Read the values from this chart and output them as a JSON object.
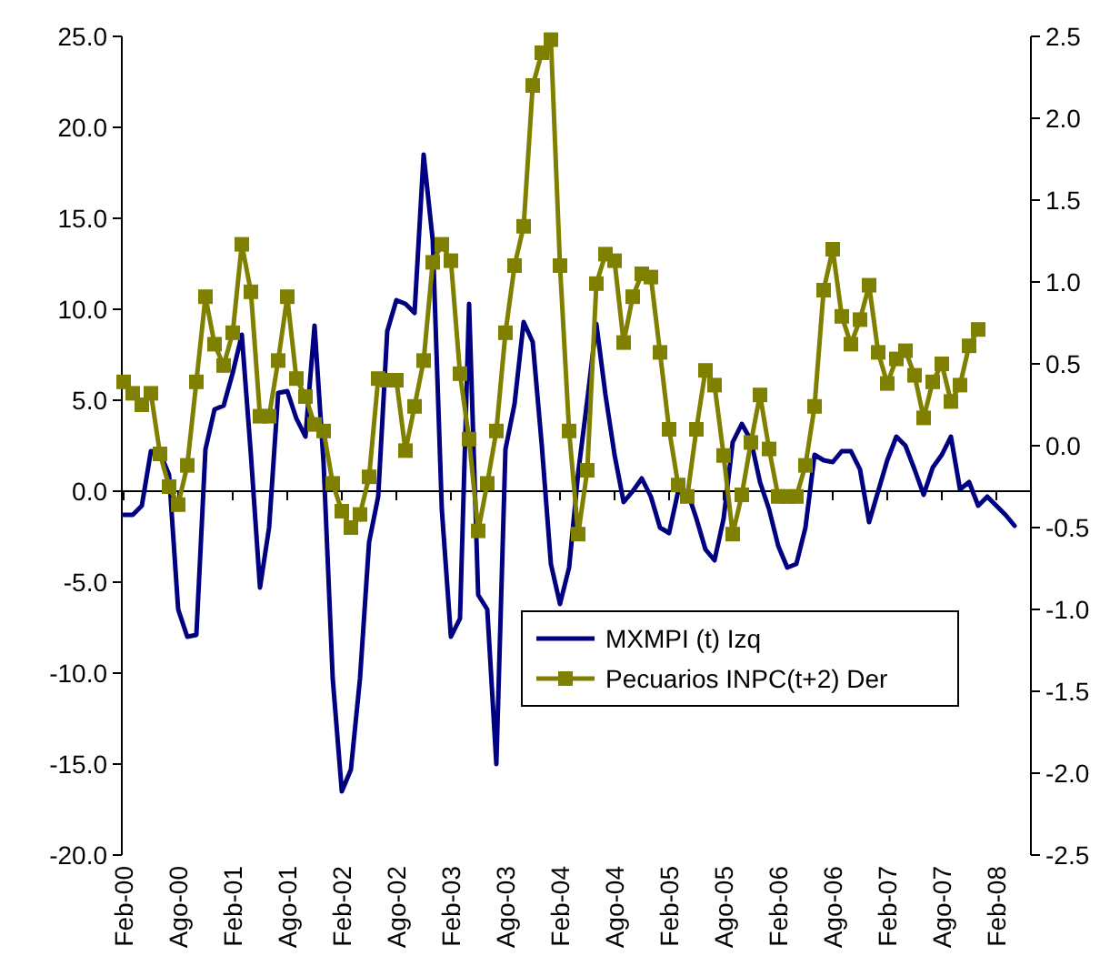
{
  "chart_data": {
    "type": "line",
    "categories": [
      "Feb-00",
      null,
      null,
      null,
      null,
      null,
      "Ago-00",
      null,
      null,
      null,
      null,
      null,
      "Feb-01",
      null,
      null,
      null,
      null,
      null,
      "Ago-01",
      null,
      null,
      null,
      null,
      null,
      "Feb-02",
      null,
      null,
      null,
      null,
      null,
      "Ago-02",
      null,
      null,
      null,
      null,
      null,
      "Feb-03",
      null,
      null,
      null,
      null,
      null,
      "Ago-03",
      null,
      null,
      null,
      null,
      null,
      "Feb-04",
      null,
      null,
      null,
      null,
      null,
      "Ago-04",
      null,
      null,
      null,
      null,
      null,
      "Feb-05",
      null,
      null,
      null,
      null,
      null,
      "Ago-05",
      null,
      null,
      null,
      null,
      null,
      "Feb-06",
      null,
      null,
      null,
      null,
      null,
      "Ago-06",
      null,
      null,
      null,
      null,
      null,
      "Feb-07",
      null,
      null,
      null,
      null,
      null,
      "Ago-07",
      null,
      null,
      null,
      null,
      null,
      "Feb-08",
      null,
      null
    ],
    "series": [
      {
        "name": "MXMPI (t) Izq",
        "color": "#000080",
        "marker": "none",
        "values": [
          -1.3,
          -1.3,
          -0.8,
          2.2,
          2.1,
          0.9,
          -6.5,
          -8.0,
          -7.9,
          2.3,
          4.5,
          4.7,
          6.5,
          8.6,
          2.0,
          -5.3,
          -2.0,
          5.4,
          5.5,
          4.0,
          3.0,
          9.1,
          1.5,
          -10.3,
          -16.5,
          -15.3,
          -10.3,
          -2.8,
          -0.3,
          8.8,
          10.5,
          10.3,
          9.8,
          18.5,
          13.8,
          -1.0,
          -8.0,
          -7.0,
          10.3,
          -5.7,
          -6.5,
          -15.0,
          2.3,
          4.8,
          9.3,
          8.2,
          2.5,
          -4.0,
          -6.2,
          -4.2,
          1.0,
          5.0,
          9.2,
          5.3,
          2.0,
          -0.6,
          0.0,
          0.7,
          -0.3,
          -2.0,
          -2.3,
          0.0,
          0.0,
          -1.5,
          -3.2,
          -3.8,
          -1.5,
          2.7,
          3.7,
          2.8,
          0.5,
          -1.0,
          -3.0,
          -4.2,
          -4.0,
          -2.0,
          2.0,
          1.7,
          1.6,
          2.2,
          2.2,
          1.2,
          -1.7,
          0.0,
          1.7,
          3.0,
          2.5,
          1.2,
          -0.2,
          1.3,
          2.0,
          3.0,
          0.1,
          0.5,
          -0.8,
          -0.3,
          -0.8,
          -1.3,
          -1.9
        ]
      },
      {
        "name": "Pecuarios INPC(t+2) Der",
        "color": "#808000",
        "marker": "square",
        "axis": "y2",
        "values": [
          0.39,
          0.32,
          0.25,
          0.32,
          -0.05,
          -0.25,
          -0.36,
          -0.12,
          0.39,
          0.91,
          0.62,
          0.49,
          0.69,
          1.23,
          0.94,
          0.18,
          0.18,
          0.52,
          0.91,
          0.41,
          0.3,
          0.13,
          0.09,
          -0.23,
          -0.4,
          -0.5,
          -0.42,
          -0.19,
          0.41,
          0.4,
          0.4,
          -0.03,
          0.24,
          0.52,
          1.12,
          1.23,
          1.13,
          0.44,
          0.04,
          -0.52,
          -0.23,
          0.09,
          0.69,
          1.1,
          1.34,
          2.2,
          2.4,
          2.48,
          1.1,
          0.09,
          -0.54,
          -0.15,
          0.99,
          1.17,
          1.13,
          0.63,
          0.91,
          1.05,
          1.03,
          0.57,
          0.1,
          -0.24,
          -0.31,
          0.1,
          0.46,
          0.37,
          -0.06,
          -0.54,
          -0.3,
          0.02,
          0.31,
          -0.02,
          -0.31,
          -0.31,
          -0.31,
          -0.12,
          0.24,
          0.95,
          1.2,
          0.79,
          0.62,
          0.77,
          0.98,
          0.57,
          0.38,
          0.53,
          0.58,
          0.43,
          0.17,
          0.39,
          0.5,
          0.27,
          0.37,
          0.61,
          0.71,
          null,
          null,
          null,
          null
        ]
      }
    ],
    "ylim": [
      -20,
      25
    ],
    "yticks": [
      {
        "value": -20,
        "label": "-20.0"
      },
      {
        "value": -15,
        "label": "-15.0"
      },
      {
        "value": -10,
        "label": "-10.0"
      },
      {
        "value": -5,
        "label": "-5.0"
      },
      {
        "value": 0,
        "label": "0.0"
      },
      {
        "value": 5,
        "label": "5.0"
      },
      {
        "value": 10,
        "label": "10.0"
      },
      {
        "value": 15,
        "label": "15.0"
      },
      {
        "value": 20,
        "label": "20.0"
      },
      {
        "value": 25,
        "label": "25.0"
      }
    ],
    "y2lim": [
      -2.5,
      2.5
    ],
    "y2ticks": [
      -2.5,
      {
        "value": -2,
        "label": "-2.0"
      },
      -1.5,
      {
        "value": -1,
        "label": "-1.0"
      },
      -0.5,
      {
        "value": 0,
        "label": "0.0"
      },
      0.5,
      {
        "value": 1,
        "label": "1.0"
      },
      1.5,
      {
        "value": 2,
        "label": "2.0"
      },
      2.5
    ],
    "legend": "bottom right",
    "line_style": "solid"
  }
}
